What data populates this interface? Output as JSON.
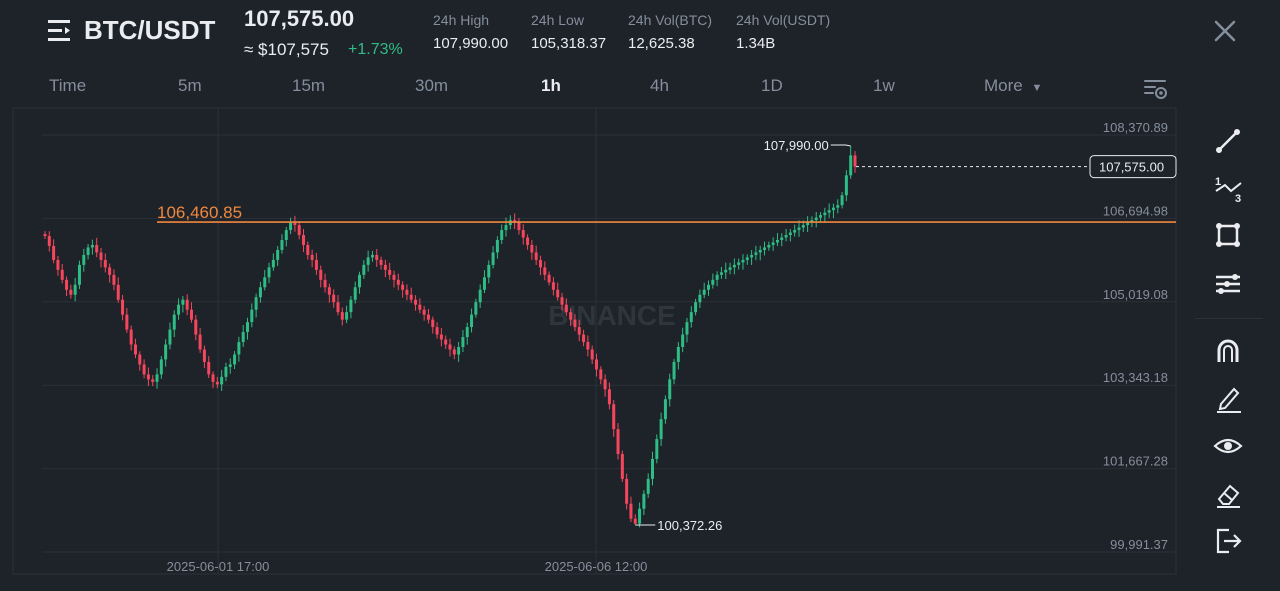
{
  "header": {
    "pair": "BTC/USDT",
    "price": "107,575.00",
    "approx": "≈ $107,575",
    "change": "+1.73%",
    "stats": [
      {
        "label": "24h High",
        "value": "107,990.00"
      },
      {
        "label": "24h Low",
        "value": "105,318.37"
      },
      {
        "label": "24h Vol(BTC)",
        "value": "12,625.38"
      },
      {
        "label": "24h Vol(USDT)",
        "value": "1.34B"
      }
    ]
  },
  "tabs": [
    "Time",
    "5m",
    "15m",
    "30m",
    "1h",
    "4h",
    "1D",
    "1w"
  ],
  "active_tab": "1h",
  "more_label": "More",
  "chart": {
    "y_ticks": [
      "108,370.89",
      "106,694.98",
      "105,019.08",
      "103,343.18",
      "101,667.28",
      "99,991.37"
    ],
    "x_ticks": [
      "2025-06-01 17:00",
      "2025-06-06 12:00"
    ],
    "horizontal_line_label": "106,460.85",
    "high_label": "107,990.00",
    "low_label": "100,372.26",
    "last_price_label": "107,575.00",
    "watermark": "BINANCE",
    "colors": {
      "up": "#2ebd85",
      "down": "#f6465d",
      "line": "#f0883e",
      "grid": "#2b3139"
    }
  },
  "chart_data": {
    "type": "candlestick",
    "ylim": [
      99991.37,
      108370.89
    ],
    "y_ticks": [
      108370.89,
      106694.98,
      105019.08,
      103343.18,
      101667.28,
      99991.37
    ],
    "x_ticks": [
      "2025-06-01 17:00",
      "2025-06-06 12:00"
    ],
    "horizontal_line": 106460.85,
    "high": 107990.0,
    "low": 100372.26,
    "last": 107575.0,
    "close": [
      106180,
      105980,
      105700,
      105500,
      105300,
      105100,
      105000,
      105200,
      105600,
      105800,
      105950,
      106000,
      105850,
      105700,
      105550,
      105400,
      105200,
      104900,
      104600,
      104300,
      104000,
      103800,
      103600,
      103400,
      103300,
      103250,
      103400,
      103700,
      104000,
      104300,
      104600,
      104800,
      104900,
      104700,
      104500,
      104200,
      103900,
      103650,
      103400,
      103250,
      103200,
      103350,
      103550,
      103600,
      103800,
      104050,
      104250,
      104450,
      104700,
      104950,
      105150,
      105350,
      105550,
      105700,
      105900,
      106100,
      106300,
      106450,
      106400,
      106200,
      106000,
      105800,
      105700,
      105500,
      105300,
      105150,
      105000,
      104850,
      104650,
      104500,
      104650,
      104900,
      105150,
      105400,
      105600,
      105750,
      105800,
      105700,
      105600,
      105500,
      105400,
      105300,
      105200,
      105100,
      105000,
      104900,
      104800,
      104700,
      104600,
      104500,
      104350,
      104200,
      104100,
      104000,
      103900,
      103800,
      103950,
      104150,
      104350,
      104600,
      104850,
      105100,
      105350,
      105600,
      105850,
      106100,
      106300,
      106400,
      106500,
      106460,
      106300,
      106150,
      106000,
      105850,
      105700,
      105550,
      105400,
      105250,
      105100,
      104950,
      104800,
      104650,
      104500,
      104350,
      104200,
      104050,
      103900,
      103700,
      103500,
      103300,
      103100,
      102800,
      102300,
      101800,
      101300,
      100800,
      100500,
      100400,
      100700,
      101000,
      101300,
      101700,
      102100,
      102500,
      102900,
      103300,
      103650,
      103950,
      104200,
      104450,
      104650,
      104850,
      105000,
      105100,
      105200,
      105300,
      105400,
      105450,
      105500,
      105550,
      105600,
      105650,
      105700,
      105750,
      105800,
      105850,
      105900,
      105950,
      106000,
      106050,
      106100,
      106150,
      106200,
      106250,
      106300,
      106350,
      106400,
      106450,
      106500,
      106550,
      106600,
      106650,
      106700,
      106750,
      106800,
      107000,
      107400,
      107800,
      107575
    ]
  },
  "tools": [
    "trend-line-icon",
    "fibonacci-icon",
    "rectangle-icon",
    "indicator-settings-icon",
    "magnet-icon",
    "pencil-icon",
    "eye-icon",
    "eraser-icon",
    "exit-icon"
  ]
}
